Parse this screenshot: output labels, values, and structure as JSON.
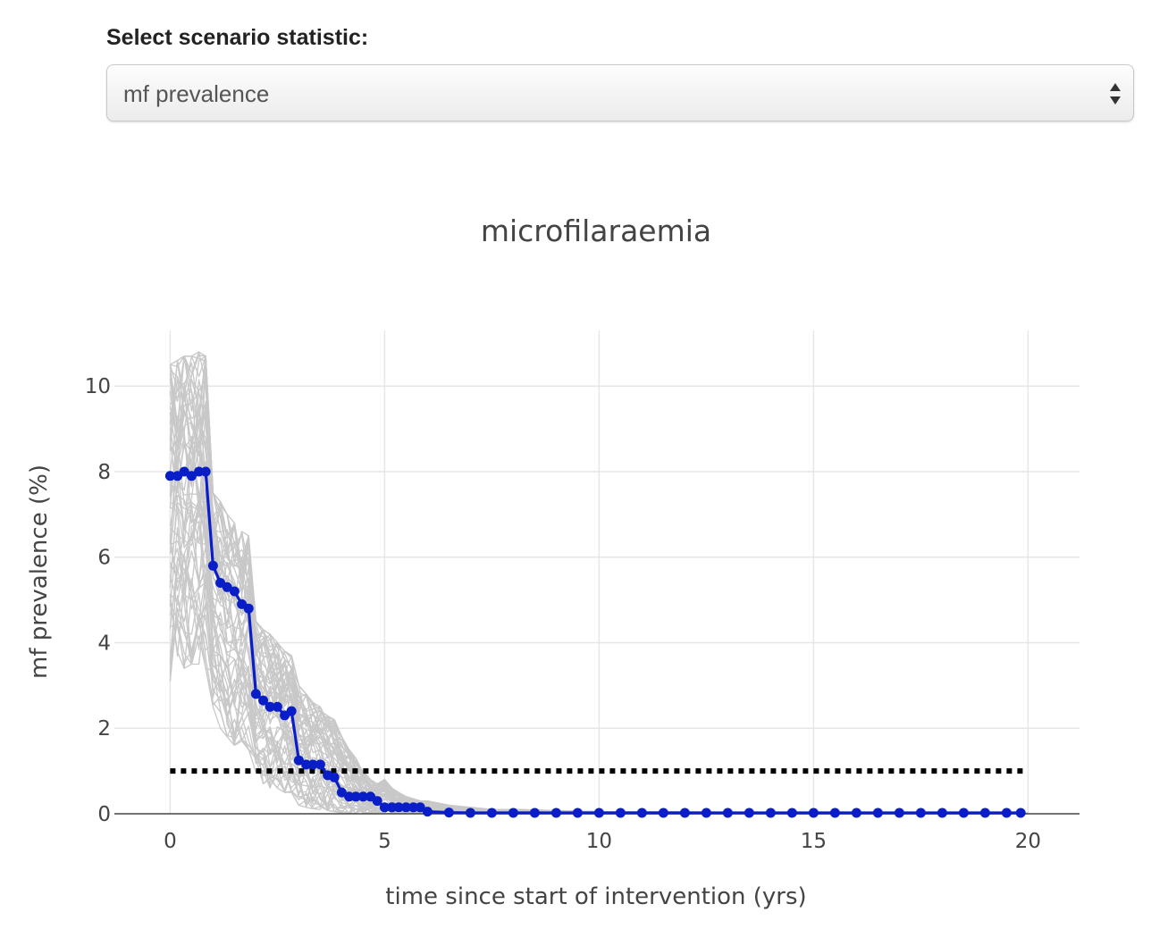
{
  "control": {
    "label": "Select scenario statistic:",
    "selected": "mf prevalence"
  },
  "chart_data": {
    "type": "line",
    "title": "microfilaraemia",
    "xlabel": "time since start of intervention (yrs)",
    "ylabel": "mf prevalence (%)",
    "xlim": [
      -1.3,
      21.2
    ],
    "ylim": [
      0,
      11.3
    ],
    "x_ticks": [
      "0",
      "5",
      "10",
      "15",
      "20"
    ],
    "y_ticks": [
      "0",
      "2",
      "4",
      "6",
      "8",
      "10"
    ],
    "grid": true,
    "legend": "none",
    "colors": {
      "median": "#0a1ec8",
      "simulations": "#c8c8c8",
      "threshold": "#000000",
      "grid": "#e6e6e6"
    },
    "threshold": {
      "y": 1,
      "x": [
        0,
        20
      ],
      "style": "dotted"
    },
    "simulation_band": {
      "count": 60,
      "x": [
        0,
        0.17,
        0.33,
        0.5,
        0.67,
        0.83,
        1.0,
        1.17,
        1.33,
        1.5,
        1.67,
        1.83,
        2.0,
        2.17,
        2.33,
        2.5,
        2.67,
        2.83,
        3.0,
        3.17,
        3.33,
        3.5,
        3.67,
        3.83,
        4.0,
        4.17,
        4.33,
        4.5,
        4.67,
        4.83,
        5.0,
        5.17,
        5.33,
        5.5,
        5.67,
        5.83,
        6.0,
        6.5,
        7.0,
        7.5,
        8.0,
        10.0,
        15.0,
        20.0
      ],
      "low": [
        3.1,
        3.6,
        3.4,
        3.5,
        3.3,
        3.4,
        2.5,
        2.0,
        1.8,
        1.6,
        1.7,
        1.5,
        0.9,
        0.7,
        0.6,
        0.6,
        0.5,
        0.5,
        0.2,
        0.15,
        0.12,
        0.1,
        0.08,
        0.05,
        0.02,
        0.01,
        0.01,
        0,
        0,
        0,
        0,
        0,
        0,
        0,
        0,
        0,
        0,
        0,
        0,
        0,
        0,
        0,
        0,
        0
      ],
      "high": [
        10.5,
        10.6,
        10.7,
        10.7,
        10.8,
        10.7,
        7.5,
        7.3,
        7.0,
        6.8,
        6.6,
        6.5,
        4.5,
        4.3,
        4.2,
        4.0,
        3.8,
        3.7,
        3.0,
        2.8,
        2.6,
        2.5,
        2.3,
        2.2,
        1.8,
        1.5,
        1.3,
        1.0,
        0.8,
        0.7,
        0.8,
        0.6,
        0.5,
        0.4,
        0.35,
        0.3,
        0.3,
        0.2,
        0.15,
        0.1,
        0.1,
        0.05,
        0.03,
        0.02
      ]
    },
    "series": [
      {
        "name": "",
        "x": [
          0,
          0.17,
          0.33,
          0.5,
          0.67,
          0.83,
          1.0,
          1.17,
          1.33,
          1.5,
          1.67,
          1.83,
          2.0,
          2.17,
          2.33,
          2.5,
          2.67,
          2.83,
          3.0,
          3.17,
          3.33,
          3.5,
          3.67,
          3.83,
          4.0,
          4.17,
          4.33,
          4.5,
          4.67,
          4.83,
          5.0,
          5.17,
          5.33,
          5.5,
          5.67,
          5.83,
          6.0,
          6.5,
          7.0,
          7.5,
          8.0,
          8.5,
          9.0,
          9.5,
          10.0,
          10.5,
          11.0,
          11.5,
          12.0,
          12.5,
          13.0,
          13.5,
          14.0,
          14.5,
          15.0,
          15.5,
          16.0,
          16.5,
          17.0,
          17.5,
          18.0,
          18.5,
          19.0,
          19.5,
          19.83
        ],
        "y": [
          7.9,
          7.9,
          8.0,
          7.9,
          8.0,
          8.0,
          5.8,
          5.4,
          5.3,
          5.2,
          4.9,
          4.8,
          2.8,
          2.65,
          2.5,
          2.5,
          2.3,
          2.4,
          1.25,
          1.15,
          1.15,
          1.15,
          0.9,
          0.85,
          0.5,
          0.4,
          0.4,
          0.4,
          0.4,
          0.3,
          0.15,
          0.15,
          0.15,
          0.15,
          0.15,
          0.15,
          0.05,
          0.03,
          0.02,
          0.02,
          0.02,
          0.02,
          0.02,
          0.02,
          0.02,
          0.02,
          0.02,
          0.02,
          0.02,
          0.02,
          0.02,
          0.02,
          0.02,
          0.02,
          0.02,
          0.02,
          0.02,
          0.02,
          0.02,
          0.02,
          0.02,
          0.02,
          0.02,
          0.02,
          0.02
        ]
      }
    ]
  }
}
